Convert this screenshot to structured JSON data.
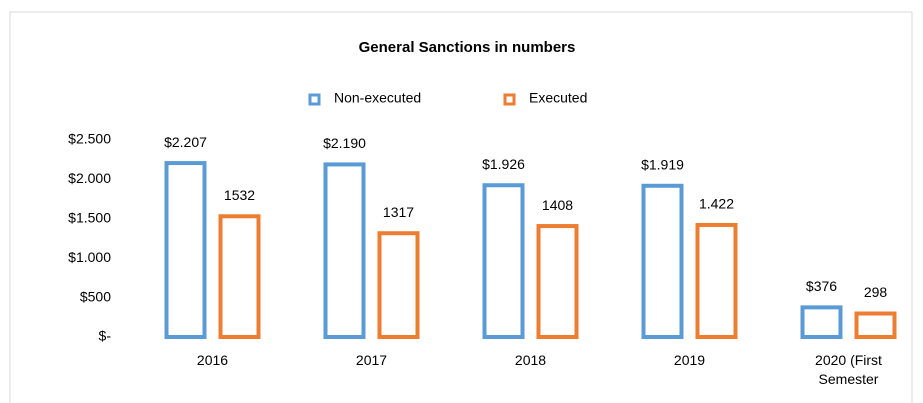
{
  "chart_data": {
    "type": "bar",
    "title": "General Sanctions in numbers",
    "categories": [
      "2016",
      "2017",
      "2018",
      "2019",
      "2020 (First Semester"
    ],
    "series": [
      {
        "name": "Non-executed",
        "color": "#5b9bd5",
        "values": [
          2207,
          2190,
          1926,
          1919,
          376
        ],
        "value_labels": [
          "$2.207",
          "$2.190",
          "$1.926",
          "$1.919",
          "$376"
        ]
      },
      {
        "name": "Executed",
        "color": "#ed7d31",
        "values": [
          1532,
          1317,
          1408,
          1422,
          298
        ],
        "value_labels": [
          "1532",
          "1317",
          "1408",
          "1.422",
          "298"
        ]
      }
    ],
    "ylim": [
      0,
      2500
    ],
    "yticks": [
      {
        "value": 0,
        "label": "$-"
      },
      {
        "value": 500,
        "label": "$500"
      },
      {
        "value": 1000,
        "label": "$1.000"
      },
      {
        "value": 1500,
        "label": "$1.500"
      },
      {
        "value": 2000,
        "label": "$2.000"
      },
      {
        "value": 2500,
        "label": "$2.500"
      }
    ],
    "grid": false,
    "legend": "top"
  }
}
